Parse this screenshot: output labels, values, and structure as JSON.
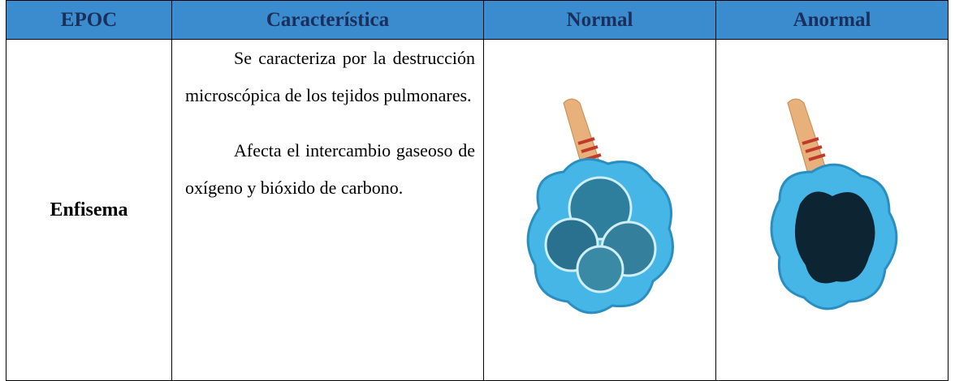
{
  "table": {
    "header": [
      "EPOC",
      "Característica",
      "Normal",
      "Anormal"
    ],
    "rows": [
      {
        "disease": "Enfisema",
        "characteristic": [
          "Se caracteriza por la destrucción microscópica de los tejidos pulmonares.",
          "Afecta el intercambio gaseoso de oxígeno y bióxido de carbono."
        ]
      }
    ]
  }
}
